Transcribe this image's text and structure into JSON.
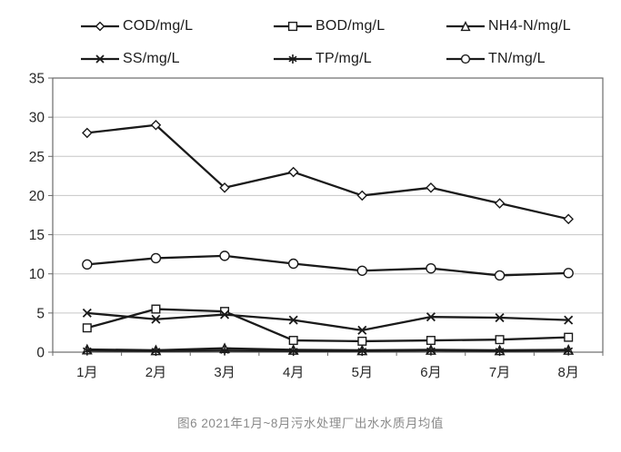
{
  "caption": "图6 2021年1月~8月污水处理厂出水水质月均值",
  "colors": {
    "line": "#1a1a1a",
    "grid": "#c6c6c6",
    "border": "#6a6a6a",
    "text": "#262626",
    "caption": "#8a8a8a"
  },
  "chart_data": {
    "type": "line",
    "title": "图6 2021年1月~8月污水处理厂出水水质月均值",
    "xlabel": "",
    "ylabel": "",
    "categories": [
      "1月",
      "2月",
      "3月",
      "4月",
      "5月",
      "6月",
      "7月",
      "8月"
    ],
    "series": [
      {
        "name": "COD/mg/L",
        "marker": "diamond",
        "values": [
          28,
          29,
          21,
          23,
          20,
          21,
          19,
          17
        ]
      },
      {
        "name": "BOD/mg/L",
        "marker": "square",
        "values": [
          3.1,
          5.5,
          5.2,
          1.5,
          1.4,
          1.5,
          1.6,
          1.9
        ]
      },
      {
        "name": "NH4-N/mg/L",
        "marker": "triangle",
        "values": [
          0.35,
          0.25,
          0.5,
          0.3,
          0.25,
          0.3,
          0.25,
          0.3
        ]
      },
      {
        "name": "SS/mg/L",
        "marker": "x",
        "values": [
          5.0,
          4.2,
          4.8,
          4.1,
          2.8,
          4.5,
          4.4,
          4.1
        ]
      },
      {
        "name": "TP/mg/L",
        "marker": "asterisk",
        "values": [
          0.2,
          0.15,
          0.2,
          0.15,
          0.15,
          0.2,
          0.15,
          0.2
        ]
      },
      {
        "name": "TN/mg/L",
        "marker": "circle",
        "values": [
          11.2,
          12.0,
          12.3,
          11.3,
          10.4,
          10.7,
          9.8,
          10.1
        ]
      }
    ],
    "ylim": [
      0,
      35
    ],
    "yticks": [
      0,
      5,
      10,
      15,
      20,
      25,
      30,
      35
    ],
    "grid": true,
    "legend_position": "top"
  }
}
